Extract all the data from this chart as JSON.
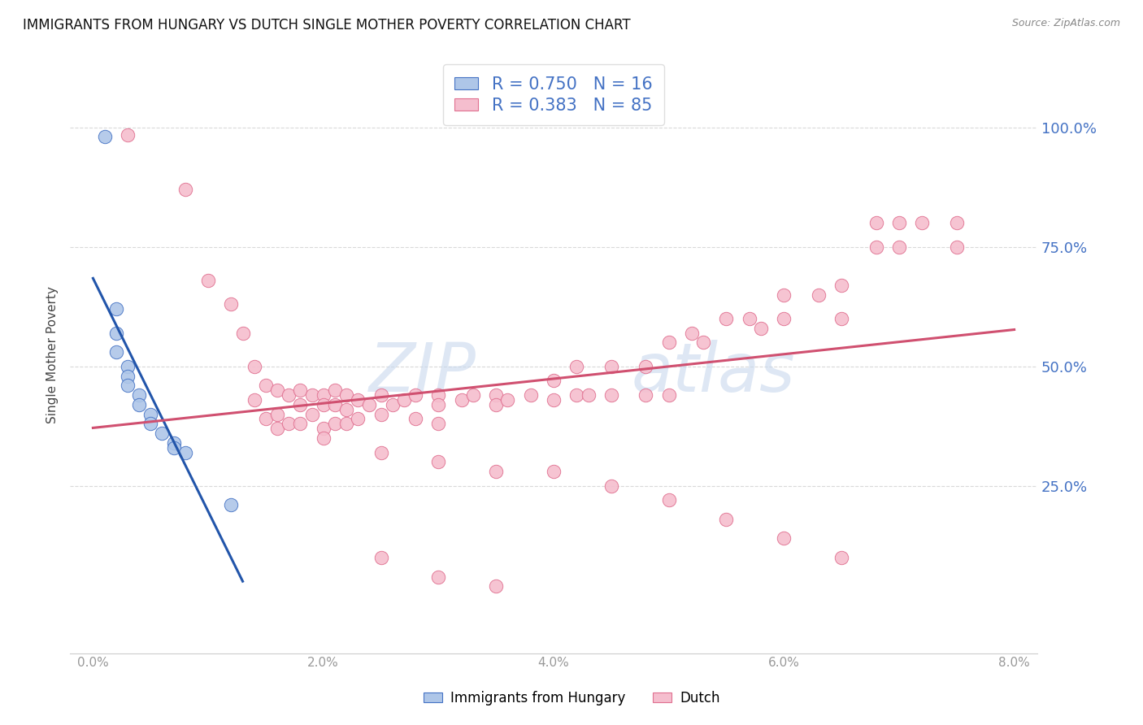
{
  "title": "IMMIGRANTS FROM HUNGARY VS DUTCH SINGLE MOTHER POVERTY CORRELATION CHART",
  "source": "Source: ZipAtlas.com",
  "ylabel": "Single Mother Poverty",
  "legend_label_blue": "Immigrants from Hungary",
  "legend_label_pink": "Dutch",
  "blue_color": "#aec6e8",
  "pink_color": "#f5bece",
  "blue_edge_color": "#4472c4",
  "pink_edge_color": "#e07090",
  "blue_line_color": "#2255aa",
  "pink_line_color": "#d05070",
  "right_tick_color": "#4472c4",
  "grid_color": "#d0d0d0",
  "background_color": "#ffffff",
  "title_color": "#111111",
  "source_color": "#888888",
  "watermark_color": "#c8d8ee",
  "blue_x": [
    0.001,
    0.002,
    0.002,
    0.002,
    0.003,
    0.003,
    0.003,
    0.004,
    0.004,
    0.005,
    0.005,
    0.006,
    0.007,
    0.007,
    0.008,
    0.012
  ],
  "blue_y": [
    0.98,
    0.62,
    0.57,
    0.53,
    0.5,
    0.48,
    0.46,
    0.44,
    0.42,
    0.4,
    0.38,
    0.36,
    0.34,
    0.33,
    0.32,
    0.21
  ],
  "pink_x": [
    0.003,
    0.008,
    0.01,
    0.012,
    0.013,
    0.014,
    0.014,
    0.015,
    0.015,
    0.016,
    0.016,
    0.016,
    0.017,
    0.017,
    0.018,
    0.018,
    0.018,
    0.019,
    0.019,
    0.02,
    0.02,
    0.02,
    0.021,
    0.021,
    0.021,
    0.022,
    0.022,
    0.022,
    0.023,
    0.023,
    0.024,
    0.025,
    0.025,
    0.026,
    0.027,
    0.028,
    0.028,
    0.03,
    0.03,
    0.03,
    0.032,
    0.033,
    0.035,
    0.035,
    0.036,
    0.038,
    0.04,
    0.04,
    0.042,
    0.042,
    0.043,
    0.045,
    0.045,
    0.048,
    0.048,
    0.05,
    0.05,
    0.052,
    0.053,
    0.055,
    0.057,
    0.058,
    0.06,
    0.06,
    0.063,
    0.065,
    0.065,
    0.068,
    0.068,
    0.07,
    0.07,
    0.072,
    0.075,
    0.075,
    0.02,
    0.025,
    0.03,
    0.035,
    0.04,
    0.045,
    0.05,
    0.055,
    0.06,
    0.065,
    0.025,
    0.03,
    0.035
  ],
  "pink_y": [
    0.985,
    0.87,
    0.68,
    0.63,
    0.57,
    0.5,
    0.43,
    0.46,
    0.39,
    0.45,
    0.4,
    0.37,
    0.44,
    0.38,
    0.45,
    0.42,
    0.38,
    0.44,
    0.4,
    0.44,
    0.42,
    0.37,
    0.45,
    0.42,
    0.38,
    0.44,
    0.41,
    0.38,
    0.43,
    0.39,
    0.42,
    0.44,
    0.4,
    0.42,
    0.43,
    0.44,
    0.39,
    0.44,
    0.42,
    0.38,
    0.43,
    0.44,
    0.44,
    0.42,
    0.43,
    0.44,
    0.47,
    0.43,
    0.5,
    0.44,
    0.44,
    0.44,
    0.5,
    0.5,
    0.44,
    0.55,
    0.44,
    0.57,
    0.55,
    0.6,
    0.6,
    0.58,
    0.65,
    0.6,
    0.65,
    0.67,
    0.6,
    0.8,
    0.75,
    0.8,
    0.75,
    0.8,
    0.8,
    0.75,
    0.35,
    0.32,
    0.3,
    0.28,
    0.28,
    0.25,
    0.22,
    0.18,
    0.14,
    0.1,
    0.1,
    0.06,
    0.04
  ],
  "xlim_data": [
    0.0,
    0.08
  ],
  "ylim_data": [
    -0.1,
    1.15
  ],
  "xticks": [
    0.0,
    0.02,
    0.04,
    0.06,
    0.08
  ],
  "yticks_right": [
    0.25,
    0.5,
    0.75,
    1.0
  ]
}
